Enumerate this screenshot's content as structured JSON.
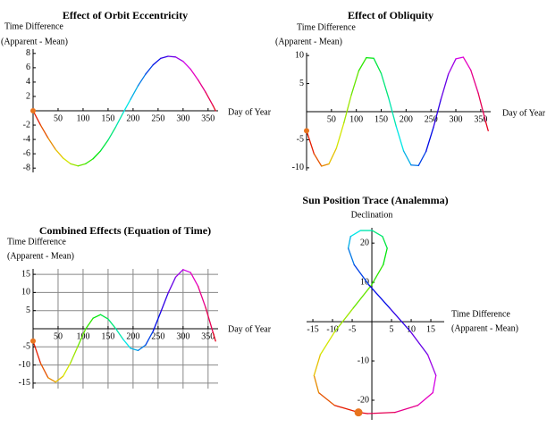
{
  "chart_data": [
    {
      "type": "line",
      "title": "Effect of Orbit Eccentricity",
      "xlabel": "Day of Year",
      "ylabel": [
        "Time Difference",
        "(Apparent - Mean)"
      ],
      "x": [
        0,
        15,
        30,
        45,
        60,
        75,
        90,
        105,
        120,
        135,
        150,
        165,
        180,
        195,
        210,
        225,
        240,
        255,
        270,
        285,
        300,
        315,
        330,
        345,
        360,
        365
      ],
      "values": [
        0,
        -2.0,
        -3.8,
        -5.4,
        -6.6,
        -7.4,
        -7.7,
        -7.4,
        -6.7,
        -5.6,
        -4.1,
        -2.3,
        -0.3,
        1.6,
        3.5,
        5.1,
        6.4,
        7.3,
        7.6,
        7.5,
        6.9,
        5.8,
        4.3,
        2.6,
        0.7,
        0
      ],
      "colormap": "hue",
      "marker_color": "#e8741e",
      "grid": false,
      "xlim": [
        0,
        370
      ],
      "ylim": [
        -8.6,
        8.6
      ],
      "xticks": [
        50,
        100,
        150,
        200,
        250,
        300,
        350
      ],
      "yticks": [
        -8,
        -6,
        -4,
        -2,
        2,
        4,
        6,
        8
      ]
    },
    {
      "type": "line",
      "title": "Effect of Obliquity",
      "xlabel": "Day of Year",
      "ylabel": [
        "Time Difference",
        "(Apparent - Mean)"
      ],
      "x": [
        0,
        15,
        30,
        45,
        60,
        75,
        90,
        105,
        120,
        135,
        150,
        165,
        180,
        195,
        210,
        225,
        240,
        255,
        270,
        285,
        300,
        315,
        330,
        345,
        360,
        365
      ],
      "values": [
        -3.4,
        -7.5,
        -9.7,
        -9.3,
        -6.5,
        -2.0,
        3.0,
        7.3,
        9.6,
        9.5,
        6.8,
        2.4,
        -2.6,
        -7.0,
        -9.5,
        -9.6,
        -7.1,
        -2.8,
        2.2,
        6.7,
        9.4,
        9.7,
        7.4,
        3.3,
        -1.8,
        -3.4
      ],
      "colormap": "hue",
      "marker_color": "#e8741e",
      "grid": false,
      "xlim": [
        0,
        370
      ],
      "ylim": [
        -10.5,
        10.5
      ],
      "xticks": [
        50,
        100,
        150,
        200,
        250,
        300,
        350
      ],
      "yticks": [
        -10,
        -5,
        5,
        10
      ]
    },
    {
      "type": "line",
      "title": "Combined Effects (Equation of Time)",
      "xlabel": "Day of Year",
      "ylabel": [
        "Time Difference",
        "(Apparent - Mean)"
      ],
      "x": [
        0,
        15,
        30,
        45,
        60,
        75,
        90,
        105,
        120,
        135,
        150,
        165,
        180,
        195,
        210,
        225,
        240,
        255,
        270,
        285,
        300,
        315,
        330,
        345,
        360,
        365
      ],
      "values": [
        -3.4,
        -9.5,
        -13.5,
        -14.7,
        -13.1,
        -9.4,
        -4.7,
        -0.1,
        2.9,
        3.9,
        2.7,
        0.1,
        -2.9,
        -5.4,
        -6.0,
        -4.5,
        -0.7,
        4.5,
        9.8,
        14.2,
        16.3,
        15.5,
        11.7,
        5.9,
        -1.1,
        -3.4
      ],
      "colormap": "hue",
      "marker_color": "#e8741e",
      "grid": true,
      "xlim": [
        0,
        370
      ],
      "ylim": [
        -16.5,
        16.5
      ],
      "xticks": [
        50,
        100,
        150,
        200,
        250,
        300,
        350
      ],
      "yticks": [
        -15,
        -10,
        -5,
        5,
        10,
        15
      ]
    },
    {
      "type": "line",
      "title": "Sun Position Trace (Analemma)",
      "xlabel": [
        "Time Difference",
        "(Apparent - Mean)"
      ],
      "ylabel": [
        "Declination"
      ],
      "x": [
        -3.4,
        -9.5,
        -13.5,
        -14.7,
        -13.1,
        -9.4,
        -4.7,
        -0.1,
        2.9,
        3.9,
        2.7,
        0.1,
        -2.9,
        -5.4,
        -6.0,
        -4.5,
        -0.7,
        4.5,
        9.8,
        14.2,
        16.3,
        15.5,
        11.7,
        5.9,
        -1.1,
        -3.4
      ],
      "values": [
        -23.1,
        -21.3,
        -18.1,
        -13.7,
        -8.4,
        -2.5,
        3.5,
        9.3,
        14.5,
        18.7,
        21.7,
        23.2,
        23.2,
        21.7,
        18.7,
        14.5,
        9.3,
        3.5,
        -2.5,
        -8.4,
        -13.7,
        -18.1,
        -21.3,
        -23.1,
        -23.4,
        -23.1
      ],
      "colormap": "hue",
      "marker_color": "#e8741e",
      "grid": false,
      "xlim": [
        -16.6,
        18.4
      ],
      "ylim": [
        -25,
        23.9
      ],
      "xticks": [
        -15,
        -10,
        -5,
        5,
        10,
        15
      ],
      "yticks": [
        -20,
        -10,
        10,
        20
      ]
    }
  ]
}
